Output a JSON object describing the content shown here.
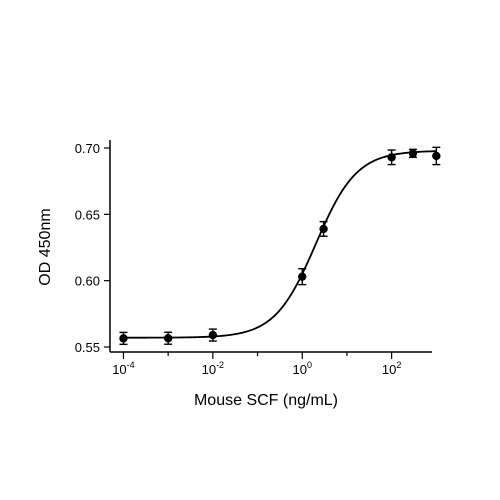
{
  "chart_data": {
    "type": "scatter",
    "title": "",
    "xlabel": "Mouse SCF (ng/mL)",
    "ylabel": "OD 450nm",
    "x_scale": "log10",
    "xlim": [
      5e-05,
      800
    ],
    "ylim": [
      0.55,
      0.7
    ],
    "x_ticks": [
      {
        "base": "10",
        "exp": "-4",
        "value": 0.0001
      },
      {
        "base": "10",
        "exp": "-2",
        "value": 0.01
      },
      {
        "base": "10",
        "exp": "0",
        "value": 1
      },
      {
        "base": "10",
        "exp": "2",
        "value": 100
      }
    ],
    "y_ticks": [
      "0.55",
      "0.60",
      "0.65",
      "0.70"
    ],
    "series": [
      {
        "points": [
          {
            "x": 0.0001,
            "y": 0.5565,
            "err": 0.0045
          },
          {
            "x": 0.001,
            "y": 0.5566,
            "err": 0.0045
          },
          {
            "x": 0.01,
            "y": 0.559,
            "err": 0.0045
          },
          {
            "x": 1,
            "y": 0.603,
            "err": 0.006
          },
          {
            "x": 3,
            "y": 0.639,
            "err": 0.0055
          },
          {
            "x": 100,
            "y": 0.693,
            "err": 0.0055
          },
          {
            "x": 300,
            "y": 0.696,
            "err": 0.003
          },
          {
            "x": 1000,
            "y": 0.694,
            "err": 0.0065
          }
        ],
        "fit": {
          "model": "4PL",
          "bottom": 0.557,
          "top": 0.698,
          "ec50": 2.0,
          "hill": 0.95
        }
      }
    ],
    "grid": false,
    "legend": "none"
  }
}
